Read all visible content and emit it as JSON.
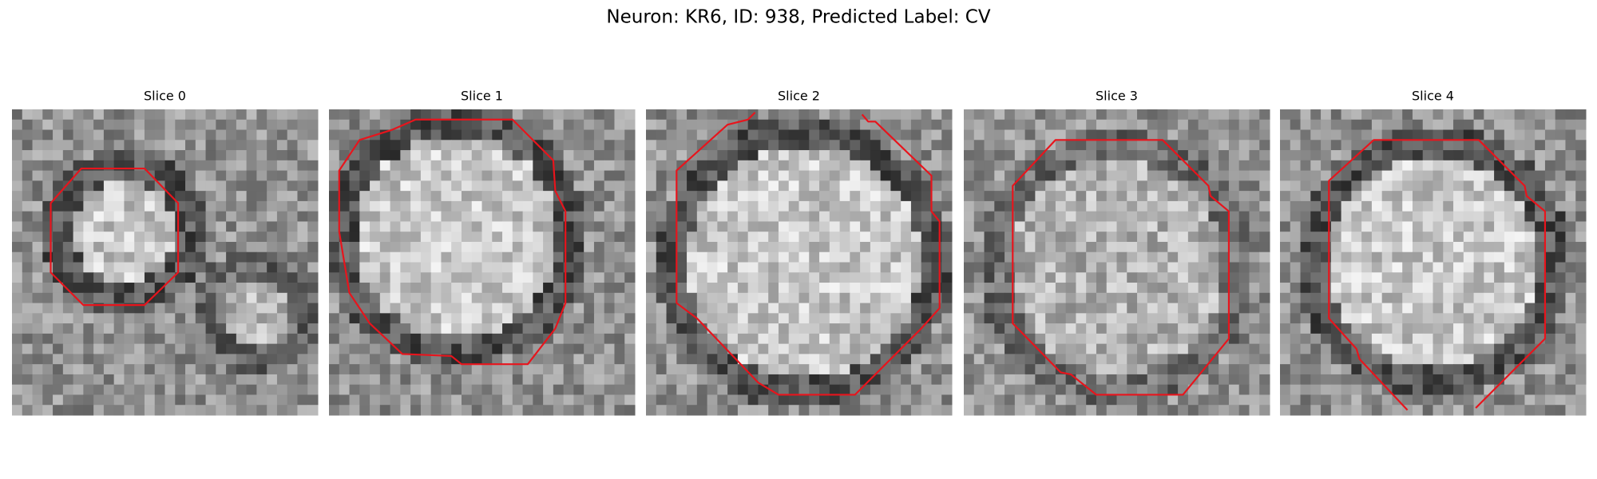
{
  "title": "Neuron: KR6, ID: 938, Predicted Label: CV",
  "panels": [
    {
      "title": "Slice 0"
    },
    {
      "title": "Slice 1"
    },
    {
      "title": "Slice 2"
    },
    {
      "title": "Slice 3"
    },
    {
      "title": "Slice 4"
    }
  ]
}
